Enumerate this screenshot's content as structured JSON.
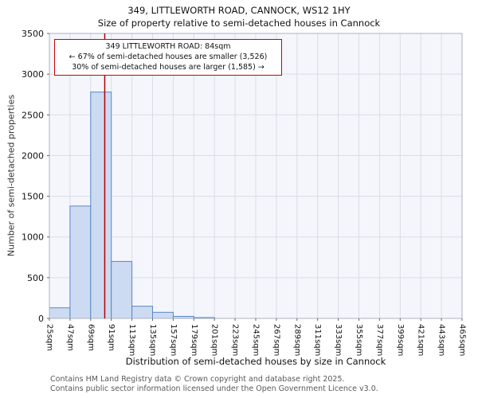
{
  "header": {
    "title": "349, LITTLEWORTH ROAD, CANNOCK, WS12 1HY",
    "subtitle": "Size of property relative to semi-detached houses in Cannock"
  },
  "footer": {
    "line1": "Contains HM Land Registry data © Crown copyright and database right 2025.",
    "line2": "Contains public sector information licensed under the Open Government Licence v3.0."
  },
  "chart_data": {
    "type": "bar",
    "title": "349, LITTLEWORTH ROAD, CANNOCK, WS12 1HY",
    "subtitle": "Size of property relative to semi-detached houses in Cannock",
    "xlabel": "Distribution of semi-detached houses by size in Cannock",
    "ylabel": "Number of semi-detached properties",
    "ylim": [
      0,
      3500
    ],
    "y_ticks": [
      0,
      500,
      1000,
      1500,
      2000,
      2500,
      3000,
      3500
    ],
    "bin_width_sqm": 22,
    "bin_edges_sqm": [
      25,
      47,
      69,
      91,
      113,
      135,
      157,
      179,
      201,
      223,
      245,
      267,
      289,
      311,
      333,
      355,
      377,
      399,
      421,
      443,
      465
    ],
    "x_tick_labels": [
      "25sqm",
      "47sqm",
      "69sqm",
      "91sqm",
      "113sqm",
      "135sqm",
      "157sqm",
      "179sqm",
      "201sqm",
      "223sqm",
      "245sqm",
      "267sqm",
      "289sqm",
      "311sqm",
      "333sqm",
      "355sqm",
      "377sqm",
      "399sqm",
      "421sqm",
      "443sqm",
      "465sqm"
    ],
    "values": [
      130,
      1380,
      2780,
      700,
      150,
      75,
      25,
      10,
      0,
      0,
      0,
      0,
      0,
      0,
      0,
      0,
      0,
      0,
      0,
      0
    ],
    "grid": true,
    "legend": "none",
    "marker": {
      "value_sqm": 84,
      "color": "#b30000"
    },
    "annotation": {
      "lines": [
        "349 LITTLEWORTH ROAD: 84sqm",
        "← 67% of semi-detached houses are smaller (3,526)",
        "30% of semi-detached houses are larger (1,585) →"
      ],
      "border_color": "#cc0000"
    },
    "colors": {
      "bar_fill": "#ccdbf1",
      "bar_border": "#5b87c5",
      "grid": "#d9dde8",
      "plot_bg": "#f4f6fc",
      "frame": "#aab2c0"
    }
  }
}
